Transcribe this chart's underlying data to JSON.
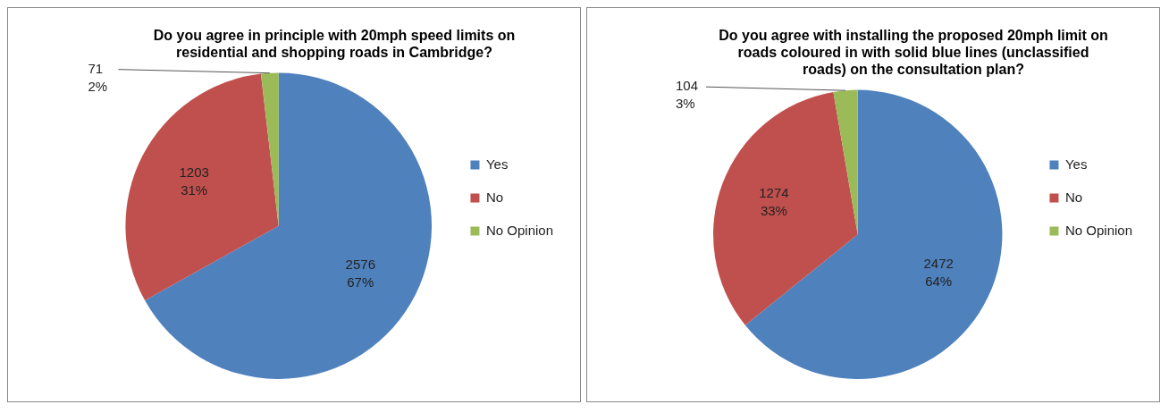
{
  "chart_data": [
    {
      "type": "pie",
      "title": "Do you agree in principle with 20mph speed limits on residential and shopping roads in Cambridge?",
      "categories": [
        "Yes",
        "No",
        "No Opinion"
      ],
      "values": [
        2576,
        1203,
        71
      ],
      "colors": [
        "#4f81bd",
        "#c0504d",
        "#9bbb59"
      ],
      "value_labels": [
        "2576\n67%",
        "1203\n31%",
        "71\n2%"
      ],
      "legend": "right"
    },
    {
      "type": "pie",
      "title": "Do you agree with installing the proposed 20mph limit on roads coloured in with solid blue lines (unclassified roads) on the consultation plan?",
      "categories": [
        "Yes",
        "No",
        "No Opinion"
      ],
      "values": [
        2472,
        1274,
        104
      ],
      "colors": [
        "#4f81bd",
        "#c0504d",
        "#9bbb59"
      ],
      "value_labels": [
        "2472\n64%",
        "1274\n33%",
        "104\n3%"
      ],
      "legend": "right"
    }
  ]
}
